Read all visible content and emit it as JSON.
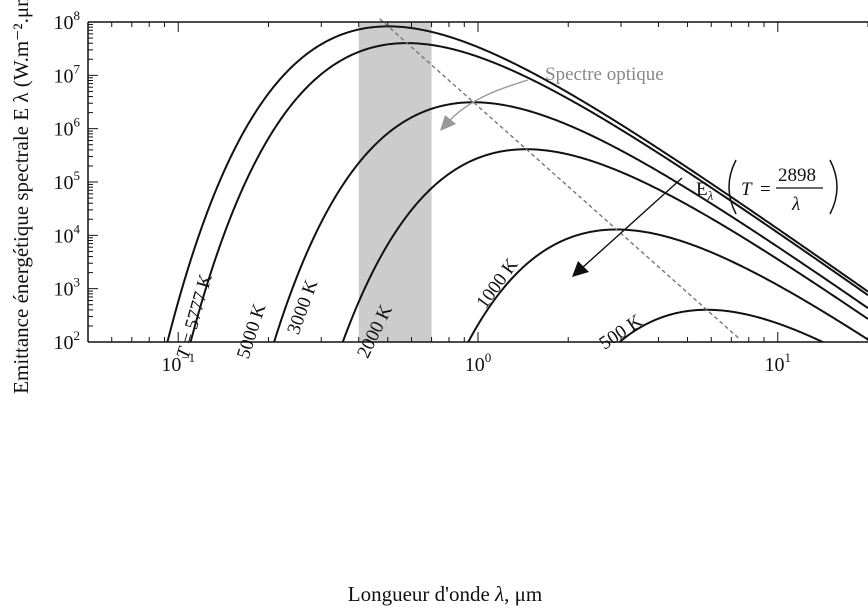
{
  "chart_data": {
    "type": "line",
    "title": "",
    "xlabel_prefix": "Longueur d'onde ",
    "xlabel_symbol": "λ",
    "xlabel_unit": ", μm",
    "ylabel": "Emittance énergétique spectrale E λ (W.m⁻².μm⁻¹)",
    "x_scale": "log",
    "y_scale": "log",
    "xlim": [
      0.05,
      20
    ],
    "ylim": [
      100,
      100000000
    ],
    "grid": false,
    "x_ticks": [
      {
        "value": 0.1,
        "base": "10",
        "exp": "−1"
      },
      {
        "value": 1,
        "base": "10",
        "exp": "0"
      },
      {
        "value": 10,
        "base": "10",
        "exp": "1"
      }
    ],
    "y_ticks": [
      {
        "value": 100,
        "base": "10",
        "exp": "2"
      },
      {
        "value": 1000,
        "base": "10",
        "exp": "3"
      },
      {
        "value": 10000,
        "base": "10",
        "exp": "4"
      },
      {
        "value": 100000,
        "base": "10",
        "exp": "5"
      },
      {
        "value": 1000000,
        "base": "10",
        "exp": "6"
      },
      {
        "value": 10000000,
        "base": "10",
        "exp": "7"
      },
      {
        "value": 100000000,
        "base": "10",
        "exp": "8"
      }
    ],
    "series": [
      {
        "name": "5777 K",
        "T": 5777,
        "label_prefix": "T",
        "label_rest": " = 5777 K",
        "color": "#111111"
      },
      {
        "name": "5000 K",
        "T": 5000,
        "label_prefix": "",
        "label_rest": "5000 K",
        "color": "#111111"
      },
      {
        "name": "3000 K",
        "T": 3000,
        "label_prefix": "",
        "label_rest": "3000 K",
        "color": "#111111"
      },
      {
        "name": "2000 K",
        "T": 2000,
        "label_prefix": "",
        "label_rest": "2000 K",
        "color": "#111111"
      },
      {
        "name": "1000 K",
        "T": 1000,
        "label_prefix": "",
        "label_rest": "1000 K",
        "color": "#111111"
      },
      {
        "name": "500 K",
        "T": 500,
        "label_prefix": "",
        "label_rest": "500 K",
        "color": "#111111"
      }
    ],
    "wien_line": {
      "constant": 2898,
      "color": "#777777",
      "label_E": "E",
      "label_sub": "λ",
      "label_T": "T",
      "label_eq": "=",
      "label_num": "2898",
      "label_den": "λ"
    },
    "optical_band": {
      "x_range": [
        0.4,
        0.7
      ],
      "color": "#cccccc",
      "label": "Spectre optique"
    }
  }
}
